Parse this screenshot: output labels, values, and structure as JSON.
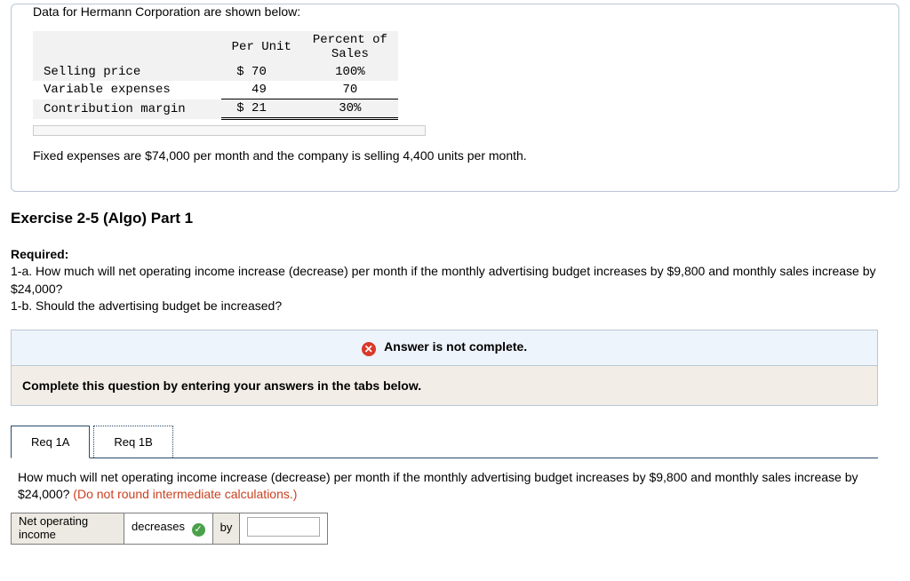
{
  "card": {
    "intro": "Data for Hermann Corporation are shown below:",
    "table": {
      "headers": {
        "per_unit": "Per Unit",
        "percent": "Percent of\nSales"
      },
      "rows": [
        {
          "label": "Selling price",
          "per_unit": "$ 70",
          "percent": "100%",
          "shaded": true,
          "style": ""
        },
        {
          "label": "Variable expenses",
          "per_unit": "49",
          "percent": "70",
          "shaded": false,
          "style": "underline"
        },
        {
          "label": "Contribution margin",
          "per_unit": "$ 21",
          "percent": "30%",
          "shaded": true,
          "style": "dbl"
        }
      ]
    },
    "fixed": "Fixed expenses are $74,000 per month and the company is selling 4,400 units per month."
  },
  "exercise_title": "Exercise 2-5 (Algo) Part 1",
  "required": {
    "heading": "Required:",
    "line1": "1-a. How much will net operating income increase (decrease) per month if the monthly advertising budget increases by $9,800 and monthly sales increase by $24,000?",
    "line2": "1-b. Should the advertising budget be increased?"
  },
  "alert": "Answer is not complete.",
  "instruction": "Complete this question by entering your answers in the tabs below.",
  "tabs": {
    "a": "Req 1A",
    "b": "Req 1B"
  },
  "question": {
    "main": "How much will net operating income increase (decrease) per month if the monthly advertising budget increases by $9,800 and monthly sales increase by $24,000? ",
    "hint": "(Do not round intermediate calculations.)"
  },
  "answer": {
    "label": "Net operating income",
    "direction": "decreases",
    "by": "by"
  }
}
